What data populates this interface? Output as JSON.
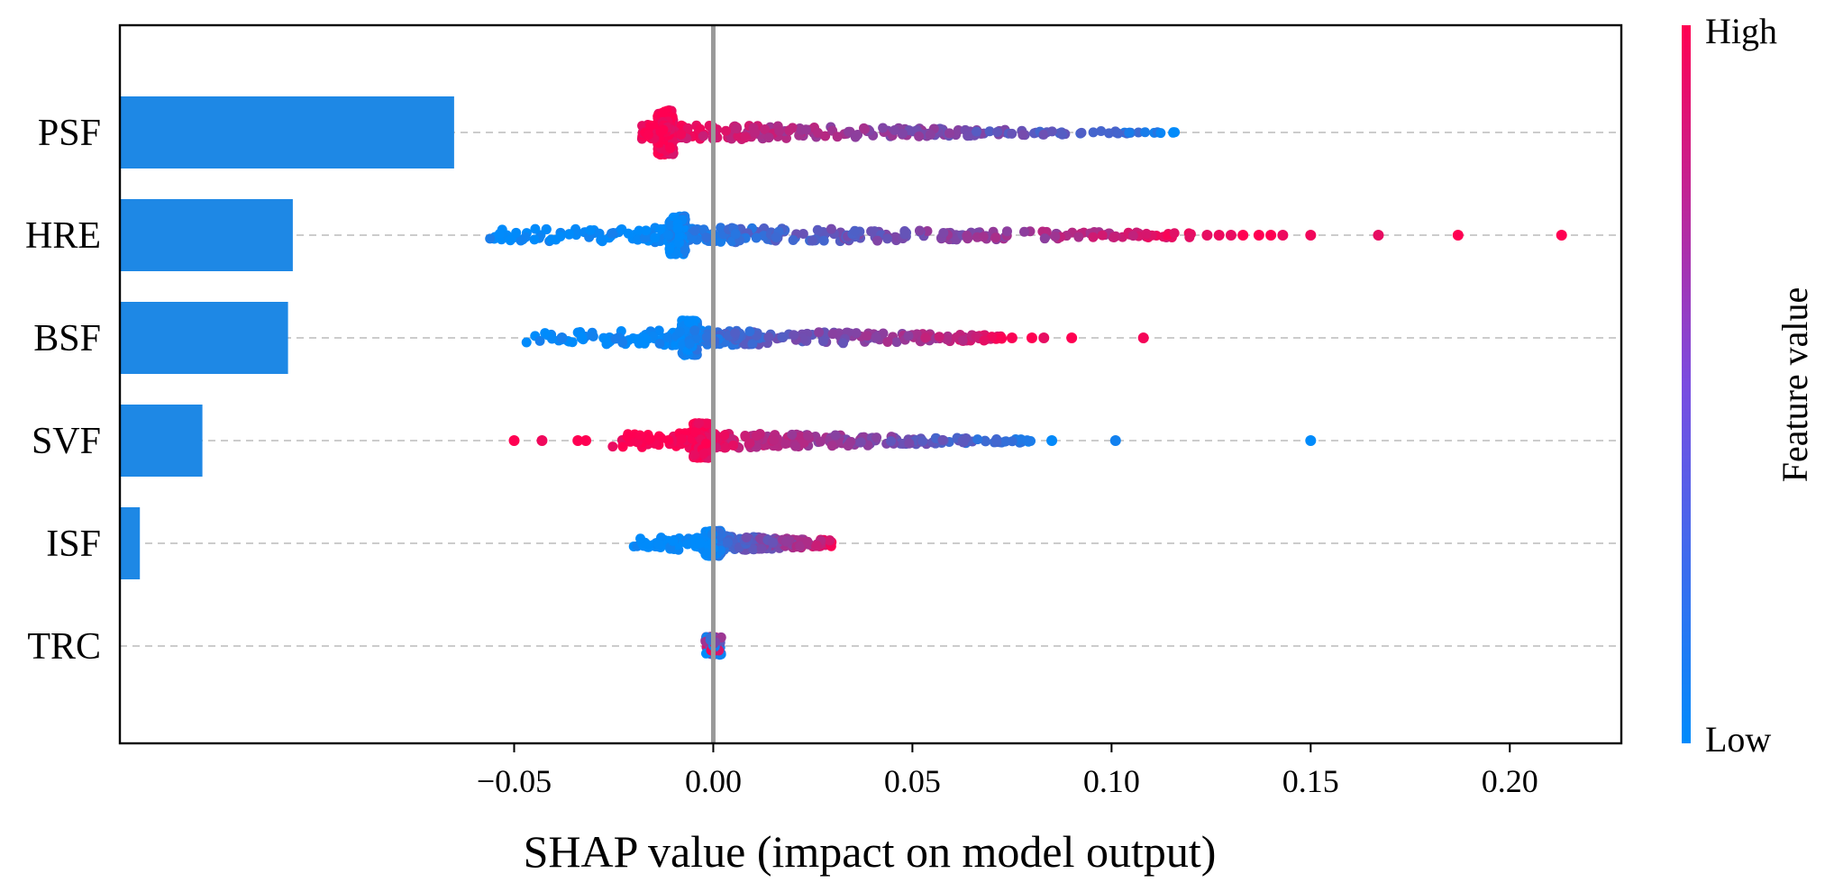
{
  "chart_data": {
    "type": "scatter",
    "subtype": "shap-summary-with-importance-bars",
    "title": "",
    "xlabel": "SHAP value (impact on model output)",
    "ylabel": "",
    "xlim": [
      -0.149,
      0.228
    ],
    "x_ticks": [
      -0.05,
      0.0,
      0.05,
      0.1,
      0.15,
      0.2
    ],
    "x_tick_labels": [
      "−0.05",
      "0.00",
      "0.05",
      "0.10",
      "0.15",
      "0.20"
    ],
    "zero_line": 0.0,
    "features": [
      {
        "name": "PSF",
        "bar_importance": 0.0837,
        "spread_min": -0.018,
        "spread_max": 0.116,
        "dense_core_center": -0.012,
        "dense_core_halfheight": 0.7,
        "high_value_side": "negative",
        "outliers": []
      },
      {
        "name": "HRE",
        "bar_importance": 0.0432,
        "spread_min": -0.057,
        "spread_max": 0.12,
        "dense_core_center": -0.009,
        "dense_core_halfheight": 0.6,
        "high_value_side": "positive",
        "outliers": [
          0.124,
          0.127,
          0.13,
          0.133,
          0.137,
          0.14,
          0.143,
          0.15,
          0.167,
          0.187,
          0.213
        ]
      },
      {
        "name": "BSF",
        "bar_importance": 0.042,
        "spread_min": -0.047,
        "spread_max": 0.073,
        "dense_core_center": -0.006,
        "dense_core_halfheight": 0.55,
        "high_value_side": "positive",
        "outliers": [
          -0.038,
          -0.033,
          0.075,
          0.08,
          0.083,
          0.09,
          0.108
        ]
      },
      {
        "name": "SVF",
        "bar_importance": 0.0205,
        "spread_min": -0.028,
        "spread_max": 0.08,
        "dense_core_center": -0.003,
        "dense_core_halfheight": 0.55,
        "high_value_side": "negative",
        "outliers": [
          -0.05,
          -0.043,
          -0.034,
          -0.032,
          0.085,
          0.101,
          0.15
        ]
      },
      {
        "name": "ISF",
        "bar_importance": 0.0048,
        "spread_min": -0.02,
        "spread_max": 0.03,
        "dense_core_center": 0.0,
        "dense_core_halfheight": 0.4,
        "high_value_side": "positive",
        "outliers": []
      },
      {
        "name": "TRC",
        "bar_importance": 0.0,
        "spread_min": -0.0005,
        "spread_max": 0.0005,
        "dense_core_center": 0.0,
        "dense_core_halfheight": 0.3,
        "high_value_side": "none",
        "outliers": []
      }
    ],
    "colorbar": {
      "label": "Feature value",
      "high_label": "High",
      "low_label": "Low",
      "high_color": "#ff0052",
      "low_color": "#008bfb"
    },
    "bar_color": "#1e88e5",
    "grid": false
  }
}
